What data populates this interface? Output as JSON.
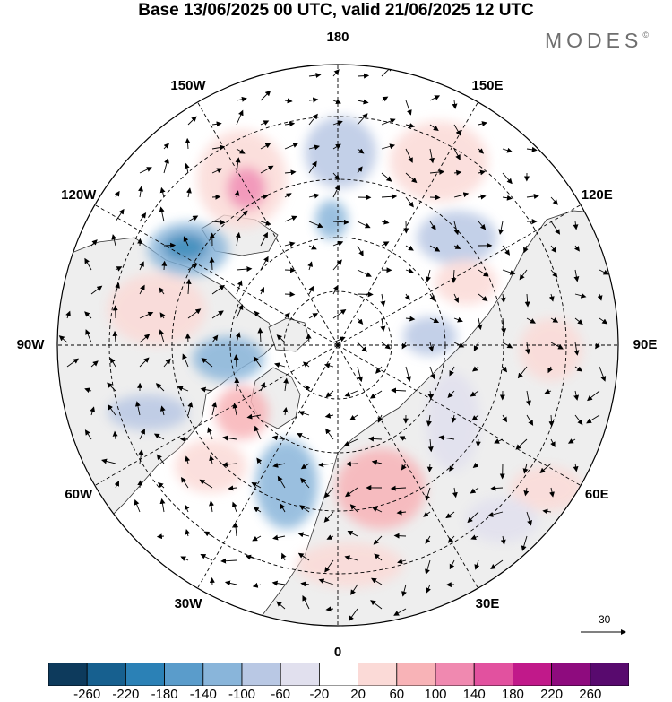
{
  "title": "Base 13/06/2025 00 UTC, valid 21/06/2025 12 UTC",
  "brand": {
    "name": "MODES",
    "mark": "©"
  },
  "map": {
    "projection": "north polar stereographic",
    "center_longitude_bottom": "0",
    "longitude_labels": [
      "180",
      "150E",
      "120E",
      "90E",
      "60E",
      "30E",
      "0",
      "30W",
      "60W",
      "90W",
      "120W",
      "150W"
    ],
    "graticule": "dashed",
    "land_color": "#eeeeee"
  },
  "vector_reference": {
    "value": "30"
  },
  "colorbar": {
    "tick_labels": [
      "-260",
      "-220",
      "-180",
      "-140",
      "-100",
      "-60",
      "-20",
      "20",
      "60",
      "100",
      "140",
      "180",
      "220",
      "260"
    ],
    "colors": [
      "#0d3a5c",
      "#17608f",
      "#2b81b6",
      "#5a9ccb",
      "#89b5da",
      "#b9c8e4",
      "#e1e0ee",
      "#ffffff",
      "#fbdad7",
      "#f8b3b7",
      "#f089b0",
      "#e2519f",
      "#c1198a",
      "#8e0b7e",
      "#580a6e"
    ]
  }
}
